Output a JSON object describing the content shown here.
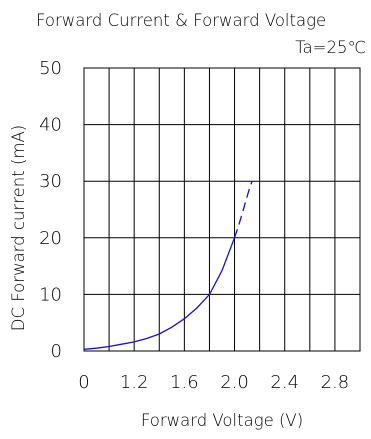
{
  "chart_data": {
    "type": "line",
    "title": "Forward Current & Forward Voltage",
    "annotation": "Ta=25℃",
    "xlabel": "Forward Voltage (V)",
    "ylabel": "DC Forward current (mA)",
    "xlim": [
      0.8,
      3.0
    ],
    "ylim": [
      0,
      50
    ],
    "x_ticks": [
      {
        "value": 0.8,
        "label": "0"
      },
      {
        "value": 1.2,
        "label": "1.2"
      },
      {
        "value": 1.6,
        "label": "1.6"
      },
      {
        "value": 2.0,
        "label": "2.0"
      },
      {
        "value": 2.4,
        "label": "2.4"
      },
      {
        "value": 2.8,
        "label": "2.8"
      }
    ],
    "y_ticks": [
      {
        "value": 0,
        "label": "0"
      },
      {
        "value": 10,
        "label": "10"
      },
      {
        "value": 20,
        "label": "20"
      },
      {
        "value": 30,
        "label": "30"
      },
      {
        "value": 40,
        "label": "40"
      },
      {
        "value": 50,
        "label": "50"
      }
    ],
    "grid": true,
    "line_color": "#1414c8",
    "series": [
      {
        "style": "solid",
        "x": [
          0.8,
          0.9,
          1.0,
          1.1,
          1.2,
          1.3,
          1.4,
          1.5,
          1.6,
          1.7,
          1.8,
          1.9,
          2.0
        ],
        "y": [
          0.3,
          0.5,
          0.8,
          1.2,
          1.6,
          2.2,
          3.0,
          4.2,
          5.7,
          7.6,
          10.0,
          14.2,
          20.0
        ]
      },
      {
        "style": "dashed",
        "x": [
          2.0,
          2.03,
          2.06,
          2.09,
          2.12,
          2.14
        ],
        "y": [
          20.0,
          22.0,
          24.2,
          26.5,
          28.8,
          30.0
        ]
      }
    ]
  }
}
